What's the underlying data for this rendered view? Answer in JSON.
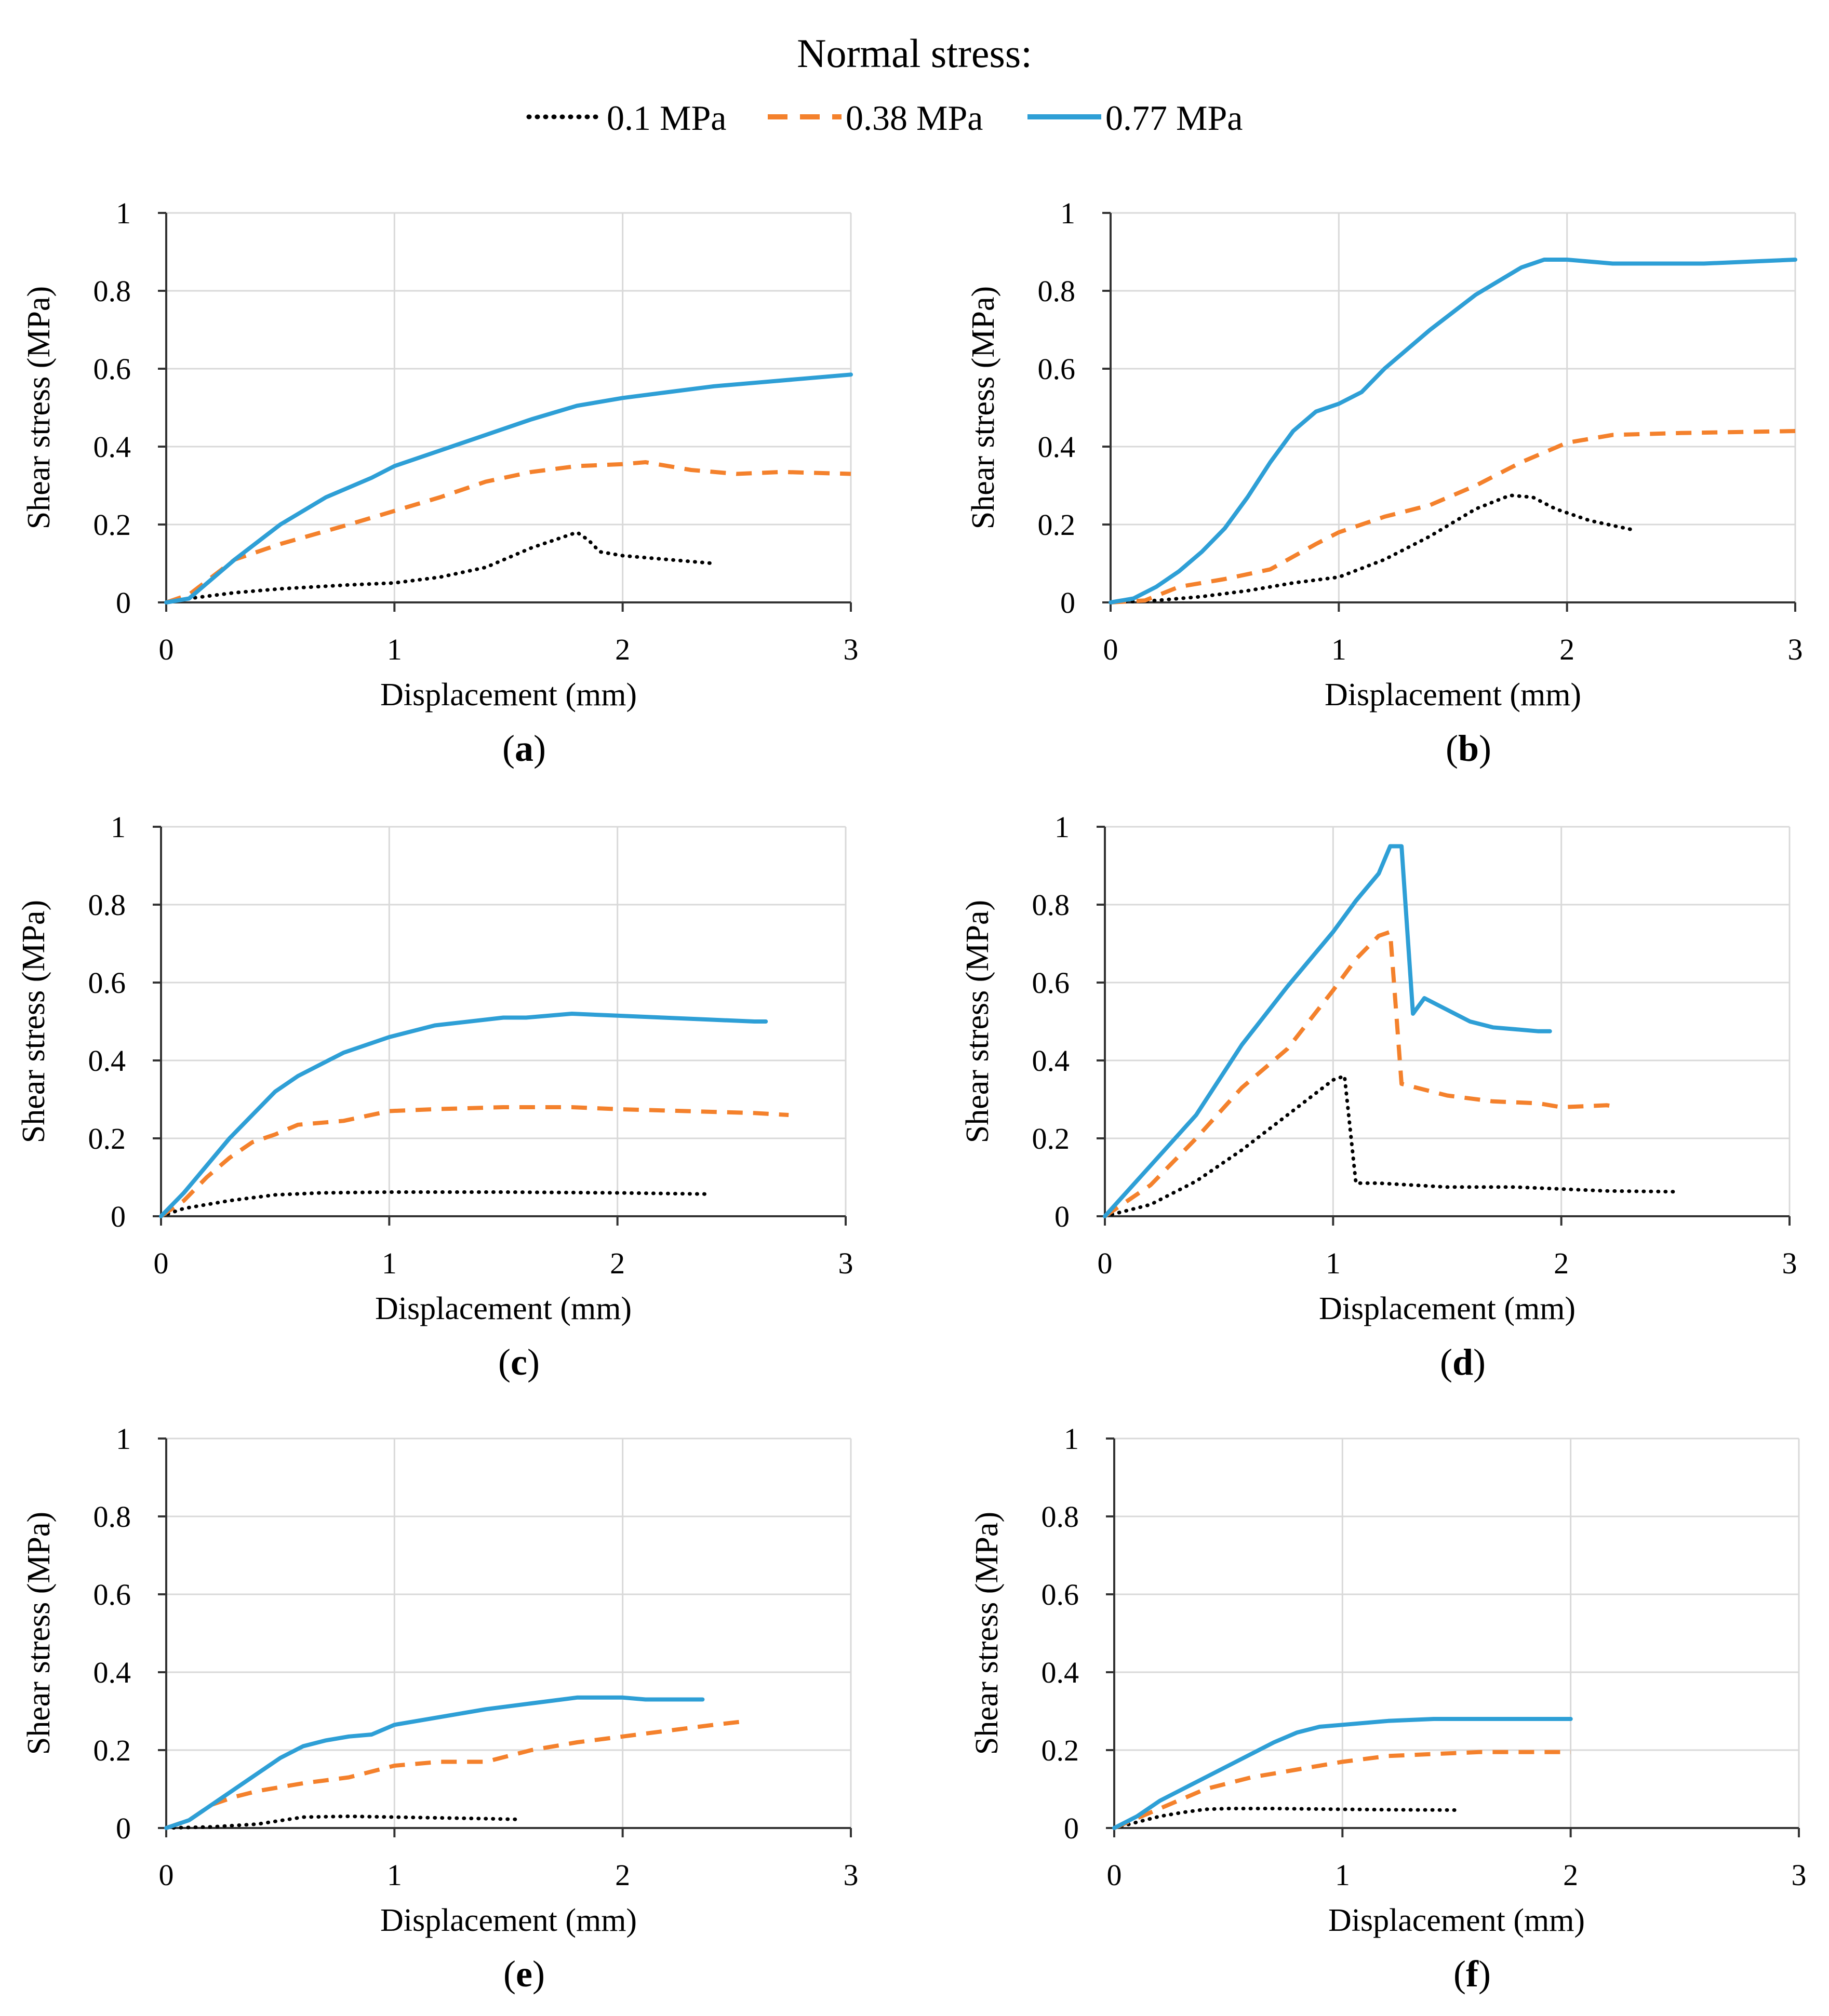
{
  "legend": {
    "title": "Normal stress:",
    "items": [
      {
        "label": "0.1 MPa",
        "color": "#000000",
        "style": "dotted"
      },
      {
        "label": "0.38 MPa",
        "color": "#f4812c",
        "style": "dashed"
      },
      {
        "label": "0.77 MPa",
        "color": "#2e9fd6",
        "style": "solid"
      }
    ]
  },
  "chart_data": [
    {
      "type": "line",
      "panel": "a",
      "panel_label": "a",
      "xlabel": "Displacement (mm)",
      "ylabel": "Shear stress (MPa)",
      "xlim": [
        0,
        3
      ],
      "ylim": [
        0,
        1
      ],
      "xticks": [
        0,
        1,
        2,
        3
      ],
      "yticks": [
        0,
        0.2,
        0.4,
        0.6,
        0.8,
        1
      ],
      "ytick_labels": [
        "0",
        "0.2",
        "0.4",
        "0.6",
        "0.8",
        "1"
      ],
      "grid": true,
      "series": [
        {
          "name": "0.1 MPa",
          "x": [
            0,
            0.1,
            0.3,
            0.5,
            0.8,
            1.0,
            1.2,
            1.4,
            1.6,
            1.75,
            1.8,
            1.85,
            1.9,
            2.0,
            2.2,
            2.4
          ],
          "y": [
            0,
            0.01,
            0.025,
            0.035,
            0.045,
            0.05,
            0.065,
            0.09,
            0.14,
            0.17,
            0.18,
            0.16,
            0.13,
            0.12,
            0.11,
            0.1
          ]
        },
        {
          "name": "0.38 MPa",
          "x": [
            0,
            0.1,
            0.3,
            0.5,
            0.8,
            1.0,
            1.2,
            1.4,
            1.6,
            1.8,
            2.0,
            2.1,
            2.3,
            2.5,
            2.7,
            3.0
          ],
          "y": [
            0,
            0.02,
            0.11,
            0.15,
            0.2,
            0.235,
            0.27,
            0.31,
            0.335,
            0.35,
            0.355,
            0.36,
            0.34,
            0.33,
            0.335,
            0.33
          ]
        },
        {
          "name": "0.77 MPa",
          "x": [
            0,
            0.1,
            0.2,
            0.3,
            0.5,
            0.7,
            0.9,
            1.0,
            1.2,
            1.4,
            1.6,
            1.8,
            2.0,
            2.2,
            2.4,
            2.6,
            2.8,
            3.0
          ],
          "y": [
            0,
            0.01,
            0.06,
            0.11,
            0.2,
            0.27,
            0.32,
            0.35,
            0.39,
            0.43,
            0.47,
            0.505,
            0.525,
            0.54,
            0.555,
            0.565,
            0.575,
            0.585
          ]
        }
      ]
    },
    {
      "type": "line",
      "panel": "b",
      "panel_label": "b",
      "xlabel": "Displacement (mm)",
      "ylabel": "Shear stress (MPa)",
      "xlim": [
        0,
        3
      ],
      "ylim": [
        0,
        1
      ],
      "xticks": [
        0,
        1,
        2,
        3
      ],
      "yticks": [
        0,
        0.2,
        0.4,
        0.6,
        0.8,
        1
      ],
      "ytick_labels": [
        "0",
        "0.2",
        "0.4",
        "0.6",
        "0.8",
        "1"
      ],
      "grid": true,
      "series": [
        {
          "name": "0.1 MPa",
          "x": [
            0,
            0.2,
            0.4,
            0.6,
            0.8,
            1.0,
            1.2,
            1.4,
            1.6,
            1.75,
            1.85,
            1.95,
            2.1,
            2.3
          ],
          "y": [
            0,
            0.005,
            0.015,
            0.03,
            0.05,
            0.065,
            0.11,
            0.17,
            0.24,
            0.275,
            0.27,
            0.24,
            0.21,
            0.185
          ]
        },
        {
          "name": "0.38 MPa",
          "x": [
            0,
            0.15,
            0.3,
            0.5,
            0.7,
            0.9,
            1.0,
            1.2,
            1.4,
            1.6,
            1.8,
            2.0,
            2.2,
            2.5,
            3.0
          ],
          "y": [
            0,
            0.005,
            0.04,
            0.06,
            0.085,
            0.15,
            0.18,
            0.22,
            0.25,
            0.3,
            0.36,
            0.41,
            0.43,
            0.435,
            0.44
          ]
        },
        {
          "name": "0.77 MPa",
          "x": [
            0,
            0.1,
            0.2,
            0.3,
            0.4,
            0.5,
            0.6,
            0.7,
            0.8,
            0.9,
            1.0,
            1.1,
            1.2,
            1.4,
            1.6,
            1.8,
            1.9,
            2.0,
            2.2,
            2.4,
            2.6,
            2.8,
            3.0
          ],
          "y": [
            0,
            0.01,
            0.04,
            0.08,
            0.13,
            0.19,
            0.27,
            0.36,
            0.44,
            0.49,
            0.51,
            0.54,
            0.6,
            0.7,
            0.79,
            0.86,
            0.88,
            0.88,
            0.87,
            0.87,
            0.87,
            0.875,
            0.88
          ]
        }
      ]
    },
    {
      "type": "line",
      "panel": "c",
      "panel_label": "c",
      "xlabel": "Displacement (mm)",
      "ylabel": "Shear stress (MPa)",
      "xlim": [
        0,
        3
      ],
      "ylim": [
        0,
        1
      ],
      "xticks": [
        0,
        1,
        2,
        3
      ],
      "yticks": [
        0,
        0.2,
        0.4,
        0.6,
        0.8,
        1
      ],
      "ytick_labels": [
        "0",
        "0.2",
        "0.4",
        "0.6",
        "0.8",
        "1"
      ],
      "grid": true,
      "series": [
        {
          "name": "0.1 MPa",
          "x": [
            0,
            0.1,
            0.3,
            0.5,
            0.7,
            1.0,
            1.5,
            2.0,
            2.4
          ],
          "y": [
            0,
            0.02,
            0.04,
            0.055,
            0.06,
            0.062,
            0.062,
            0.06,
            0.057
          ]
        },
        {
          "name": "0.38 MPa",
          "x": [
            0,
            0.1,
            0.2,
            0.3,
            0.4,
            0.5,
            0.6,
            0.8,
            1.0,
            1.2,
            1.5,
            1.8,
            2.0,
            2.3,
            2.6,
            2.75
          ],
          "y": [
            0,
            0.04,
            0.1,
            0.15,
            0.19,
            0.21,
            0.235,
            0.245,
            0.27,
            0.275,
            0.28,
            0.28,
            0.275,
            0.27,
            0.265,
            0.26
          ]
        },
        {
          "name": "0.77 MPa",
          "x": [
            0,
            0.1,
            0.2,
            0.3,
            0.4,
            0.5,
            0.6,
            0.8,
            1.0,
            1.2,
            1.5,
            1.6,
            1.8,
            2.0,
            2.2,
            2.4,
            2.6,
            2.65
          ],
          "y": [
            0,
            0.06,
            0.13,
            0.2,
            0.26,
            0.32,
            0.36,
            0.42,
            0.46,
            0.49,
            0.51,
            0.51,
            0.52,
            0.515,
            0.51,
            0.505,
            0.5,
            0.5
          ]
        }
      ]
    },
    {
      "type": "line",
      "panel": "d",
      "panel_label": "d",
      "xlabel": "Displacement (mm)",
      "ylabel": "Shear stress (MPa)",
      "xlim": [
        0,
        3
      ],
      "ylim": [
        0,
        1
      ],
      "xticks": [
        0,
        1,
        2,
        3
      ],
      "yticks": [
        0,
        0.2,
        0.4,
        0.6,
        0.8,
        1
      ],
      "ytick_labels": [
        "0",
        "0.2",
        "0.4",
        "0.6",
        "0.8",
        "1"
      ],
      "grid": true,
      "series": [
        {
          "name": "0.1 MPa",
          "x": [
            0,
            0.2,
            0.4,
            0.6,
            0.8,
            1.0,
            1.05,
            1.1,
            1.2,
            1.5,
            1.8,
            2.0,
            2.2,
            2.5
          ],
          "y": [
            0,
            0.03,
            0.09,
            0.17,
            0.26,
            0.35,
            0.36,
            0.085,
            0.085,
            0.075,
            0.075,
            0.07,
            0.065,
            0.063
          ]
        },
        {
          "name": "0.38 MPa",
          "x": [
            0,
            0.2,
            0.4,
            0.6,
            0.8,
            1.0,
            1.1,
            1.2,
            1.25,
            1.3,
            1.5,
            1.7,
            1.9,
            2.0,
            2.2,
            2.25
          ],
          "y": [
            0,
            0.08,
            0.2,
            0.33,
            0.43,
            0.58,
            0.66,
            0.72,
            0.73,
            0.34,
            0.31,
            0.295,
            0.29,
            0.28,
            0.285,
            0.28
          ]
        },
        {
          "name": "0.77 MPa",
          "x": [
            0,
            0.2,
            0.4,
            0.6,
            0.8,
            1.0,
            1.1,
            1.2,
            1.25,
            1.3,
            1.35,
            1.4,
            1.5,
            1.6,
            1.7,
            1.8,
            1.9,
            1.95
          ],
          "y": [
            0,
            0.13,
            0.26,
            0.44,
            0.59,
            0.73,
            0.81,
            0.88,
            0.95,
            0.95,
            0.52,
            0.56,
            0.53,
            0.5,
            0.485,
            0.48,
            0.475,
            0.475
          ]
        }
      ]
    },
    {
      "type": "line",
      "panel": "e",
      "panel_label": "e",
      "xlabel": "Displacement (mm)",
      "ylabel": "Shear stress (MPa)",
      "xlim": [
        0,
        3
      ],
      "ylim": [
        0,
        1
      ],
      "xticks": [
        0,
        1,
        2,
        3
      ],
      "yticks": [
        0,
        0.2,
        0.4,
        0.6,
        0.8,
        1
      ],
      "ytick_labels": [
        "0",
        "0.2",
        "0.4",
        "0.6",
        "0.8",
        "1"
      ],
      "grid": true,
      "series": [
        {
          "name": "0.1 MPa",
          "x": [
            0,
            0.2,
            0.4,
            0.6,
            0.8,
            1.0,
            1.2,
            1.4,
            1.55
          ],
          "y": [
            0,
            0.003,
            0.01,
            0.028,
            0.03,
            0.028,
            0.026,
            0.024,
            0.022
          ]
        },
        {
          "name": "0.38 MPa",
          "x": [
            0,
            0.1,
            0.2,
            0.3,
            0.4,
            0.5,
            0.6,
            0.8,
            1.0,
            1.2,
            1.4,
            1.6,
            1.8,
            2.0,
            2.2,
            2.4,
            2.55
          ],
          "y": [
            0,
            0.02,
            0.06,
            0.08,
            0.095,
            0.105,
            0.115,
            0.13,
            0.16,
            0.17,
            0.17,
            0.2,
            0.22,
            0.235,
            0.25,
            0.265,
            0.275
          ]
        },
        {
          "name": "0.77 MPa",
          "x": [
            0,
            0.1,
            0.2,
            0.3,
            0.4,
            0.5,
            0.6,
            0.7,
            0.8,
            0.9,
            1.0,
            1.2,
            1.4,
            1.6,
            1.8,
            1.9,
            2.0,
            2.1,
            2.2,
            2.35
          ],
          "y": [
            0,
            0.02,
            0.06,
            0.1,
            0.14,
            0.18,
            0.21,
            0.225,
            0.235,
            0.24,
            0.265,
            0.285,
            0.305,
            0.32,
            0.335,
            0.335,
            0.335,
            0.33,
            0.33,
            0.33
          ]
        }
      ]
    },
    {
      "type": "line",
      "panel": "f",
      "panel_label": "f",
      "xlabel": "Displacement (mm)",
      "ylabel": "Shear stress (MPa)",
      "xlim": [
        0,
        3
      ],
      "ylim": [
        0,
        1
      ],
      "xticks": [
        0,
        1,
        2,
        3
      ],
      "yticks": [
        0,
        0.2,
        0.4,
        0.6,
        0.8,
        1
      ],
      "ytick_labels": [
        "0",
        "0.2",
        "0.4",
        "0.6",
        "0.8",
        "1"
      ],
      "grid": true,
      "series": [
        {
          "name": "0.1 MPa",
          "x": [
            0,
            0.1,
            0.2,
            0.3,
            0.4,
            0.5,
            0.7,
            1.0,
            1.2,
            1.5
          ],
          "y": [
            0,
            0.015,
            0.03,
            0.04,
            0.048,
            0.05,
            0.05,
            0.048,
            0.047,
            0.046
          ]
        },
        {
          "name": "0.38 MPa",
          "x": [
            0,
            0.2,
            0.4,
            0.6,
            0.8,
            1.0,
            1.2,
            1.4,
            1.6,
            1.8,
            2.0
          ],
          "y": [
            0,
            0.05,
            0.1,
            0.13,
            0.15,
            0.17,
            0.185,
            0.19,
            0.195,
            0.195,
            0.195
          ]
        },
        {
          "name": "0.77 MPa",
          "x": [
            0,
            0.1,
            0.2,
            0.3,
            0.4,
            0.5,
            0.6,
            0.7,
            0.8,
            0.9,
            1.0,
            1.2,
            1.4,
            1.6,
            1.8,
            2.0
          ],
          "y": [
            0,
            0.03,
            0.07,
            0.1,
            0.13,
            0.16,
            0.19,
            0.22,
            0.245,
            0.26,
            0.265,
            0.275,
            0.28,
            0.28,
            0.28,
            0.28
          ]
        }
      ]
    }
  ]
}
